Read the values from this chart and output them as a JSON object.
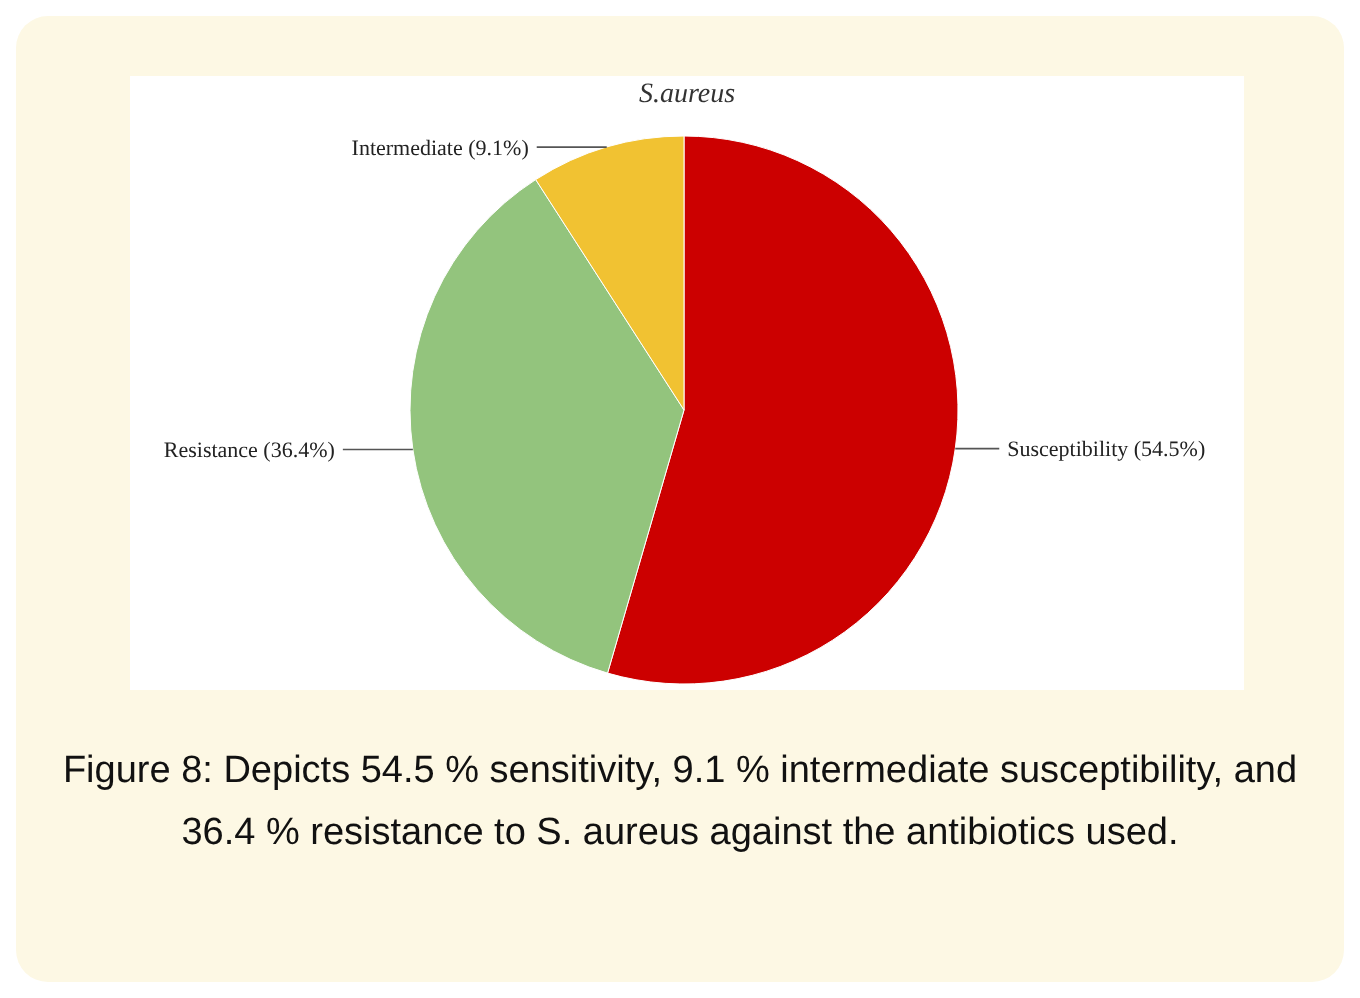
{
  "chart_data": {
    "type": "pie",
    "title": "S.aureus",
    "categories": [
      "Susceptibility",
      "Resistance",
      "Intermediate"
    ],
    "values": [
      54.5,
      36.4,
      9.1
    ],
    "value_labels": [
      "(54.5%)",
      "(36.4%)",
      "(9.1%)"
    ],
    "colors": [
      "#cc0000",
      "#93c47d",
      "#f1c232"
    ],
    "legend": false,
    "annotations": [
      "Figure 8: Depicts 54.5 % sensitivity, 9.1 % intermediate susceptibility, and 36.4 % resistance to S. aureus against the antibiotics used."
    ]
  }
}
